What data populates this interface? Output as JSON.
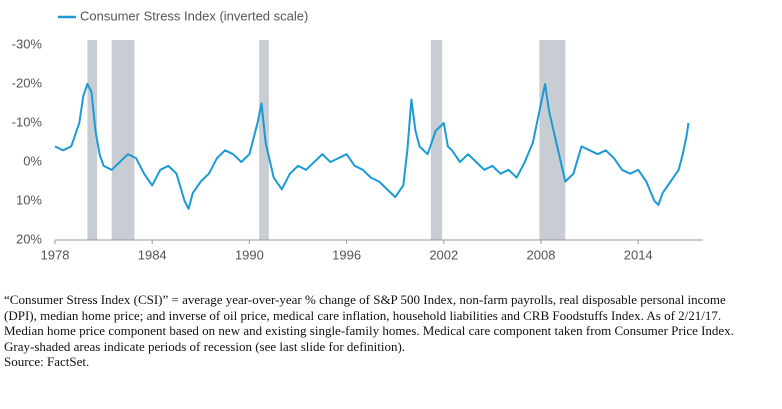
{
  "chart_data": {
    "type": "line",
    "legend": "top-left",
    "y_inverted": true,
    "x": [
      1978.0,
      1978.5,
      1979.0,
      1979.5,
      1979.75,
      1980.0,
      1980.25,
      1980.5,
      1980.75,
      1981.0,
      1981.5,
      1982.0,
      1982.5,
      1983.0,
      1983.5,
      1984.0,
      1984.5,
      1985.0,
      1985.5,
      1986.0,
      1986.25,
      1986.5,
      1987.0,
      1987.5,
      1988.0,
      1988.5,
      1989.0,
      1989.5,
      1990.0,
      1990.5,
      1990.75,
      1991.0,
      1991.5,
      1992.0,
      1992.5,
      1993.0,
      1993.5,
      1994.0,
      1994.5,
      1995.0,
      1995.5,
      1996.0,
      1996.5,
      1997.0,
      1997.5,
      1998.0,
      1998.5,
      1999.0,
      1999.5,
      1999.75,
      2000.0,
      2000.25,
      2000.5,
      2001.0,
      2001.5,
      2002.0,
      2002.25,
      2002.5,
      2003.0,
      2003.5,
      2004.0,
      2004.5,
      2005.0,
      2005.5,
      2006.0,
      2006.5,
      2007.0,
      2007.5,
      2008.0,
      2008.25,
      2008.5,
      2009.0,
      2009.5,
      2010.0,
      2010.5,
      2011.0,
      2011.5,
      2012.0,
      2012.5,
      2013.0,
      2013.5,
      2014.0,
      2014.5,
      2015.0,
      2015.25,
      2015.5,
      2016.0,
      2016.5,
      2016.75,
      2017.0,
      2017.1
    ],
    "series": [
      {
        "name": "Consumer Stress Index (inverted scale)",
        "color": "#1b9ad6",
        "values": [
          -4,
          -3,
          -4,
          -10,
          -17,
          -20,
          -18,
          -8,
          -2,
          1,
          2,
          0,
          -2,
          -1,
          3,
          6,
          2,
          1,
          3,
          10,
          12,
          8,
          5,
          3,
          -1,
          -3,
          -2,
          0,
          -2,
          -10,
          -15,
          -5,
          4,
          7,
          3,
          1,
          2,
          0,
          -2,
          0,
          -1,
          -2,
          1,
          2,
          4,
          5,
          7,
          9,
          6,
          -3,
          -16,
          -8,
          -4,
          -2,
          -8,
          -10,
          -4,
          -3,
          0,
          -2,
          0,
          2,
          1,
          3,
          2,
          4,
          0,
          -5,
          -15,
          -20,
          -13,
          -4,
          5,
          3,
          -4,
          -3,
          -2,
          -3,
          -1,
          2,
          3,
          2,
          5,
          10,
          11,
          8,
          5,
          2,
          -2,
          -7,
          -10
        ]
      }
    ],
    "recessions": [
      [
        1980.0,
        1980.6
      ],
      [
        1981.5,
        1982.9
      ],
      [
        1990.6,
        1991.2
      ],
      [
        2001.2,
        2001.9
      ],
      [
        2007.9,
        2009.5
      ]
    ],
    "recession_color": "#c8cdd3",
    "xlim": [
      1978,
      2018
    ],
    "xticks": [
      1978,
      1984,
      1990,
      1996,
      2002,
      2008,
      2014
    ],
    "ylim": [
      -30,
      20
    ],
    "yticks": [
      {
        "value": -30,
        "label": "-30%"
      },
      {
        "value": -20,
        "label": "-20%"
      },
      {
        "value": -10,
        "label": "-10%"
      },
      {
        "value": 0,
        "label": "0%"
      },
      {
        "value": 10,
        "label": "10%"
      },
      {
        "value": 20,
        "label": "20%"
      }
    ],
    "footnote": "“Consumer Stress Index (CSI)” = average year-over-year % change of S&P 500 Index, non-farm payrolls, real disposable personal income (DPI), median home price; and inverse of oil price, medical care inflation, household liabilities and CRB Foodstuffs Index. As of 2/21/17. Median home price component based on new and existing single-family homes. Medical care component taken from Consumer Price Index. Gray-shaded areas indicate periods of recession (see last slide for definition).",
    "source": "Source:  FactSet."
  }
}
